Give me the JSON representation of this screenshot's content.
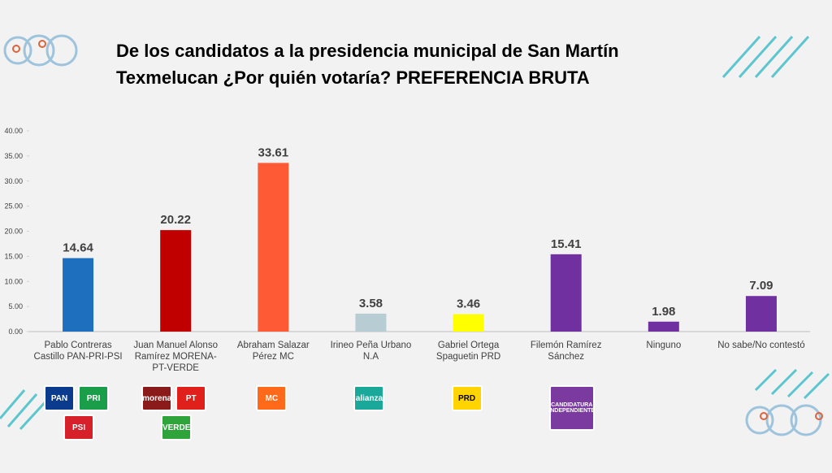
{
  "chart_data": {
    "type": "bar",
    "title": [
      "De los candidatos a la presidencia municipal de San Martín",
      "Texmelucan ¿Por quién votaría? PREFERENCIA BRUTA"
    ],
    "categories": [
      "Pablo Contreras Castillo PAN-PRI-PSI",
      "Juan Manuel Alonso Ramírez MORENA-PT-VERDE",
      "Abraham Salazar Pérez MC",
      "Irineo Peña Urbano N.A",
      "Gabriel Ortega Spaguetin PRD",
      "Filemón Ramírez Sánchez",
      "Ninguno",
      "No sabe/No contestó"
    ],
    "values": [
      14.64,
      20.22,
      33.61,
      3.58,
      3.46,
      15.41,
      1.98,
      7.09
    ],
    "colors": [
      "#1f6fbf",
      "#c00000",
      "#ff5a36",
      "#b7ccd3",
      "#ffff00",
      "#7030a0",
      "#7030a0",
      "#7030a0"
    ],
    "ylim": [
      0,
      40
    ],
    "yticks": [
      {
        "value": 0,
        "label": "0.00"
      },
      {
        "value": 5,
        "label": "5.00"
      },
      {
        "value": 10,
        "label": "10.00"
      },
      {
        "value": 15,
        "label": "15.00"
      },
      {
        "value": 20,
        "label": "20.00"
      },
      {
        "value": 25,
        "label": "25.00"
      },
      {
        "value": 30,
        "label": "30.00"
      },
      {
        "value": 35,
        "label": "35.00"
      },
      {
        "value": 40,
        "label": "40.00"
      }
    ],
    "logos": [
      [
        {
          "text": "PAN",
          "color": "#0b3b8c"
        },
        {
          "text": "PRI",
          "color": "#1a9e4a"
        },
        {
          "text": "PSI",
          "color": "#d6202a"
        }
      ],
      [
        {
          "text": "morena",
          "color": "#8b1a1a"
        },
        {
          "text": "PT",
          "color": "#e0201b"
        },
        {
          "text": "VERDE",
          "color": "#2fa43a"
        }
      ],
      [
        {
          "text": "MC",
          "color": "#ff6a1a"
        }
      ],
      [
        {
          "text": "alianza",
          "color": "#1aa89a"
        }
      ],
      [
        {
          "text": "PRD",
          "color": "#ffd400"
        }
      ],
      [
        {
          "text": "CANDIDATURA INDEPENDIENTE",
          "color": "#7a3aa0"
        }
      ],
      [],
      []
    ]
  }
}
